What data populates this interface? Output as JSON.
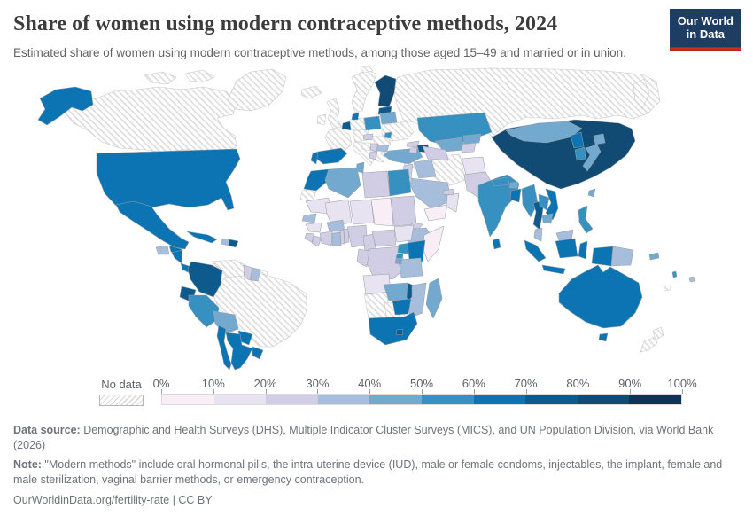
{
  "header": {
    "title": "Share of women using modern contraceptive methods, 2024",
    "subtitle": "Estimated share of women using modern contraceptive methods, among those aged 15–49 and married or in union.",
    "logo": {
      "line1": "Our World",
      "line2": "in Data",
      "bg_color": "#1d3d63",
      "accent_color": "#d02a1c"
    }
  },
  "legend": {
    "no_data_label": "No data",
    "ticks": [
      "0%",
      "10%",
      "20%",
      "30%",
      "40%",
      "50%",
      "60%",
      "70%",
      "80%",
      "90%",
      "100%"
    ]
  },
  "footer": {
    "source_label": "Data source:",
    "source_text": " Demographic and Health Surveys (DHS), Multiple Indicator Cluster Surveys (MICS), and UN Population Division, via World Bank (2026)",
    "note_label": "Note:",
    "note_text": " \"Modern methods\" include oral hormonal pills, the intra-uterine device (IUD), male or female condoms, injectables, the implant, female and male sterilization, vaginal barrier methods, or emergency contraception.",
    "url_text": "OurWorldinData.org/fertility-rate | CC BY"
  },
  "chart_data": {
    "type": "choropleth",
    "title": "Share of women using modern contraceptive methods, 2024",
    "unit": "%",
    "scale": {
      "min": 0,
      "max": 100,
      "band_size": 10
    },
    "bands": [
      "0-10%",
      "10-20%",
      "20-30%",
      "30-40%",
      "40-50%",
      "50-60%",
      "60-70%",
      "70-80%",
      "80-90%",
      "90-100%"
    ],
    "band_colors": [
      "#f9eef5",
      "#e8e3f0",
      "#d1cde4",
      "#a6bddb",
      "#74a9cf",
      "#3690c0",
      "#0c74b2",
      "#0f5a8c",
      "#114a73",
      "#0b3555"
    ],
    "no_data_style": "gray-diagonal-hatch",
    "countries": {
      "United States": "60-70%",
      "Canada": "no data",
      "Greenland": "no data",
      "Mexico": "60-70%",
      "Guatemala": "30-40%",
      "Honduras": "60-70%",
      "Nicaragua": "60-70%",
      "Costa Rica": "60-70%",
      "Panama": "50-60%",
      "Cuba": "60-70%",
      "Haiti": "30-40%",
      "Dominican Republic": "70-80%",
      "Colombia": "70-80%",
      "Venezuela": "no data",
      "Guyana": "20-30%",
      "Suriname": "30-40%",
      "French Guiana": "no data",
      "Ecuador": "70-80%",
      "Peru": "50-60%",
      "Bolivia": "40-50%",
      "Brazil": "no data",
      "Paraguay": "60-70%",
      "Chile": "60-70%",
      "Argentina": "60-70%",
      "Uruguay": "60-70%",
      "Iceland": "no data",
      "United Kingdom": "no data",
      "Ireland": "no data",
      "Norway/Sweden": "no data",
      "Finland": "80-90%",
      "Estonia": "70-80%",
      "Latvia/Lithuania": "no data",
      "Denmark": "60-70%",
      "Belgium/Netherlands": "70-80%",
      "Germany": "no data",
      "France": "no data",
      "Czechia/Austria/Switzerland": "no data",
      "Poland": "50-60%",
      "Belarus": "40-50%",
      "Ukraine": "no data",
      "Moldova": "50-60%",
      "Hungary": "20-30%",
      "Romania": "no data",
      "Croatia/Bosnia": "no data",
      "Serbia": "20-30%",
      "Albania/North Macedonia": "20-30%",
      "Bulgaria": "30-40%",
      "Greece": "no data",
      "Italy": "no data",
      "Spain": "60-70%",
      "Portugal": "60-70%",
      "Russia": "no data",
      "Turkey": "40-50%",
      "Georgia": "20-30%",
      "Armenia": "20-30%",
      "Azerbaijan": "70-80%",
      "Kazakhstan": "50-60%",
      "Uzbekistan": "40-50%",
      "Turkmenistan": "20-30%",
      "Kyrgyzstan": "40-50%",
      "Tajikistan": "20-30%",
      "Syria": "no data",
      "Iraq": "30-40%",
      "Iran": "no data",
      "Jordan": "20-30%",
      "Saudi Arabia": "30-40%",
      "Yemen": "0-10%",
      "Oman": "10-20%",
      "United Arab Emirates": "20-30%",
      "Afghanistan": "10-20%",
      "Pakistan": "20-30%",
      "India": "50-60%",
      "Nepal": "50-60%",
      "Bhutan": "40-50%",
      "Bangladesh": "60-70%",
      "Sri Lanka": "60-70%",
      "China": "80-90%",
      "Mongolia": "40-50%",
      "North Korea": "60-70%",
      "South Korea": "50-60%",
      "Japan": "40-50%",
      "Taiwan": "40-50%",
      "Myanmar": "50-60%",
      "Thailand": "70-80%",
      "Laos": "50-60%",
      "Vietnam": "60-70%",
      "Cambodia": "40-50%",
      "Malaysia": "30-40%",
      "Indonesia": "60-70%",
      "Papua New Guinea": "30-40%",
      "Philippines": "50-60%",
      "Australia": "60-70%",
      "New Zealand": "no data",
      "Solomon Islands": "40-50%",
      "Vanuatu": "50-60%",
      "Fiji": "30-40%",
      "New Caledonia": "no data",
      "Morocco": "60-70%",
      "Algeria": "40-50%",
      "Tunisia": "40-50%",
      "Libya": "20-30%",
      "Egypt": "50-60%",
      "Western Sahara": "no data",
      "Mauritania": "10-20%",
      "Mali": "10-20%",
      "Niger": "10-20%",
      "Chad": "0-10%",
      "Sudan": "20-30%",
      "Eritrea": "20-30%",
      "Ethiopia": "30-40%",
      "Somalia": "0-10%",
      "Senegal": "30-40%",
      "Guinea": "10-20%",
      "Sierra Leone": "20-30%",
      "Liberia": "20-30%",
      "Ivory Coast": "20-30%",
      "Ghana": "30-40%",
      "Burkina Faso": "30-40%",
      "Togo": "20-30%",
      "Benin": "20-30%",
      "Nigeria": "20-30%",
      "Cameroon": "20-30%",
      "Central African Republic": "20-30%",
      "South Sudan": "10-20%",
      "DR Congo": "20-30%",
      "Congo/Gabon": "20-30%",
      "Uganda": "50-60%",
      "Kenya": "60-70%",
      "Tanzania": "30-40%",
      "Rwanda": "50-60%",
      "Burundi": "40-50%",
      "Angola": "10-20%",
      "Zambia": "40-50%",
      "Malawi": "70-80%",
      "Mozambique": "30-40%",
      "Zimbabwe": "60-70%",
      "Madagascar": "40-50%",
      "Namibia": "no data",
      "Botswana": "no data",
      "South Africa": "60-70%",
      "Lesotho": "70-80%"
    }
  }
}
